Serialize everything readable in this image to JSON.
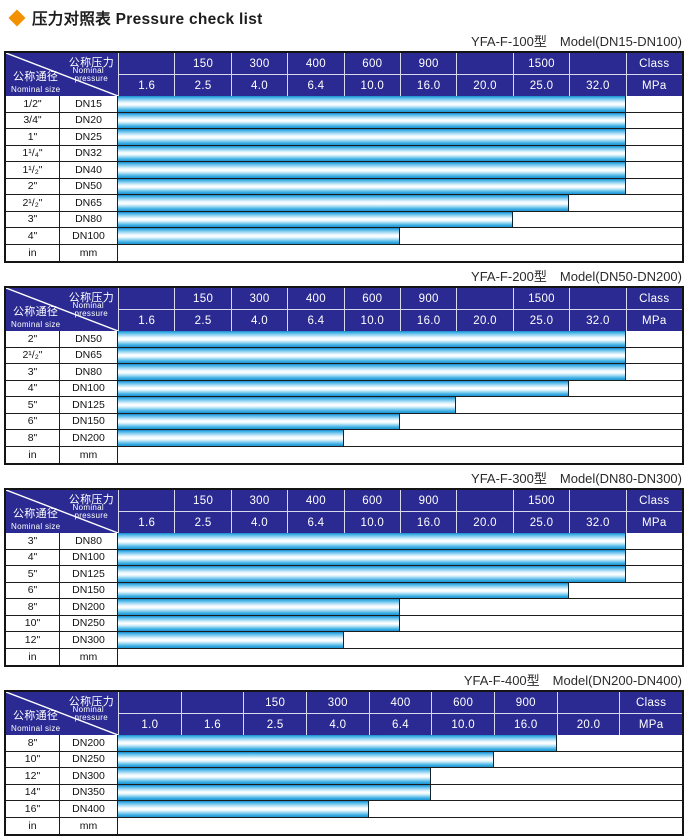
{
  "page": {
    "title_cn": "压力对照表",
    "title_en": "Pressure check list",
    "colors": {
      "diamond_orange": "#f39200",
      "header_blue": "#2a2a92",
      "bar_blue": "#29a6e0",
      "grid_black": "#1c1c1c",
      "caption_gray": "#2b2b2b"
    }
  },
  "corner": {
    "pressure_cn": "公称压力",
    "pressure_en1": "Nominal",
    "pressure_en2": "pressure",
    "size_cn": "公称通径",
    "size_en": "Nominal size"
  },
  "tables": [
    {
      "model": "YFA-F-100型",
      "range": "Model(DN15-DN100)",
      "class_row": [
        "",
        "150",
        "300",
        "400",
        "600",
        "900",
        "",
        "1500",
        "",
        "Class"
      ],
      "mpa_row": [
        "1.6",
        "2.5",
        "4.0",
        "6.4",
        "10.0",
        "16.0",
        "20.0",
        "25.0",
        "32.0",
        "MPa"
      ],
      "rows": [
        {
          "inch": "1/2\"",
          "dn": "DN15",
          "cols": 9
        },
        {
          "inch": "3/4\"",
          "dn": "DN20",
          "cols": 9
        },
        {
          "inch": "1\"",
          "dn": "DN25",
          "cols": 9
        },
        {
          "inch": "1¹/₄\"",
          "dn": "DN32",
          "cols": 9
        },
        {
          "inch": "1¹/₂\"",
          "dn": "DN40",
          "cols": 9
        },
        {
          "inch": "2\"",
          "dn": "DN50",
          "cols": 9
        },
        {
          "inch": "2¹/₂\"",
          "dn": "DN65",
          "cols": 8
        },
        {
          "inch": "3\"",
          "dn": "DN80",
          "cols": 7
        },
        {
          "inch": "4\"",
          "dn": "DN100",
          "cols": 5
        }
      ],
      "footer": [
        "in",
        "mm"
      ]
    },
    {
      "model": "YFA-F-200型",
      "range": "Model(DN50-DN200)",
      "class_row": [
        "",
        "150",
        "300",
        "400",
        "600",
        "900",
        "",
        "1500",
        "",
        "Class"
      ],
      "mpa_row": [
        "1.6",
        "2.5",
        "4.0",
        "6.4",
        "10.0",
        "16.0",
        "20.0",
        "25.0",
        "32.0",
        "MPa"
      ],
      "rows": [
        {
          "inch": "2\"",
          "dn": "DN50",
          "cols": 9
        },
        {
          "inch": "2¹/₂\"",
          "dn": "DN65",
          "cols": 9
        },
        {
          "inch": "3\"",
          "dn": "DN80",
          "cols": 9
        },
        {
          "inch": "4\"",
          "dn": "DN100",
          "cols": 8
        },
        {
          "inch": "5\"",
          "dn": "DN125",
          "cols": 6
        },
        {
          "inch": "6\"",
          "dn": "DN150",
          "cols": 5
        },
        {
          "inch": "8\"",
          "dn": "DN200",
          "cols": 4
        }
      ],
      "footer": [
        "in",
        "mm"
      ]
    },
    {
      "model": "YFA-F-300型",
      "range": "Model(DN80-DN300)",
      "class_row": [
        "",
        "150",
        "300",
        "400",
        "600",
        "900",
        "",
        "1500",
        "",
        "Class"
      ],
      "mpa_row": [
        "1.6",
        "2.5",
        "4.0",
        "6.4",
        "10.0",
        "16.0",
        "20.0",
        "25.0",
        "32.0",
        "MPa"
      ],
      "rows": [
        {
          "inch": "3\"",
          "dn": "DN80",
          "cols": 9
        },
        {
          "inch": "4\"",
          "dn": "DN100",
          "cols": 9
        },
        {
          "inch": "5\"",
          "dn": "DN125",
          "cols": 9
        },
        {
          "inch": "6\"",
          "dn": "DN150",
          "cols": 8
        },
        {
          "inch": "8\"",
          "dn": "DN200",
          "cols": 5
        },
        {
          "inch": "10\"",
          "dn": "DN250",
          "cols": 5
        },
        {
          "inch": "12\"",
          "dn": "DN300",
          "cols": 4
        }
      ],
      "footer": [
        "in",
        "mm"
      ]
    },
    {
      "model": "YFA-F-400型",
      "range": "Model(DN200-DN400)",
      "class_row": [
        "",
        "",
        "150",
        "300",
        "400",
        "600",
        "900",
        "",
        "Class"
      ],
      "mpa_row": [
        "1.0",
        "1.6",
        "2.5",
        "4.0",
        "6.4",
        "10.0",
        "16.0",
        "20.0",
        "MPa"
      ],
      "rows": [
        {
          "inch": "8\"",
          "dn": "DN200",
          "cols": 7
        },
        {
          "inch": "10\"",
          "dn": "DN250",
          "cols": 6
        },
        {
          "inch": "12\"",
          "dn": "DN300",
          "cols": 5
        },
        {
          "inch": "14\"",
          "dn": "DN350",
          "cols": 5
        },
        {
          "inch": "16\"",
          "dn": "DN400",
          "cols": 4
        }
      ],
      "footer": [
        "in",
        "mm"
      ]
    }
  ],
  "chart_data": [
    {
      "type": "bar",
      "title": "YFA-F-100型 Model(DN15-DN100)",
      "categories": [
        "DN15",
        "DN20",
        "DN25",
        "DN32",
        "DN40",
        "DN50",
        "DN65",
        "DN80",
        "DN100"
      ],
      "values": [
        32.0,
        32.0,
        32.0,
        32.0,
        32.0,
        32.0,
        25.0,
        20.0,
        10.0
      ],
      "xlabel": "Nominal size",
      "ylabel": "Nominal pressure (MPa)",
      "ylim": [
        0,
        32
      ]
    },
    {
      "type": "bar",
      "title": "YFA-F-200型 Model(DN50-DN200)",
      "categories": [
        "DN50",
        "DN65",
        "DN80",
        "DN100",
        "DN125",
        "DN150",
        "DN200"
      ],
      "values": [
        32.0,
        32.0,
        32.0,
        25.0,
        16.0,
        10.0,
        6.4
      ],
      "xlabel": "Nominal size",
      "ylabel": "Nominal pressure (MPa)",
      "ylim": [
        0,
        32
      ]
    },
    {
      "type": "bar",
      "title": "YFA-F-300型 Model(DN80-DN300)",
      "categories": [
        "DN80",
        "DN100",
        "DN125",
        "DN150",
        "DN200",
        "DN250",
        "DN300"
      ],
      "values": [
        32.0,
        32.0,
        32.0,
        25.0,
        10.0,
        10.0,
        6.4
      ],
      "xlabel": "Nominal size",
      "ylabel": "Nominal pressure (MPa)",
      "ylim": [
        0,
        32
      ]
    },
    {
      "type": "bar",
      "title": "YFA-F-400型 Model(DN200-DN400)",
      "categories": [
        "DN200",
        "DN250",
        "DN300",
        "DN350",
        "DN400"
      ],
      "values": [
        16.0,
        10.0,
        6.4,
        6.4,
        4.0
      ],
      "xlabel": "Nominal size",
      "ylabel": "Nominal pressure (MPa)",
      "ylim": [
        0,
        20
      ]
    }
  ]
}
